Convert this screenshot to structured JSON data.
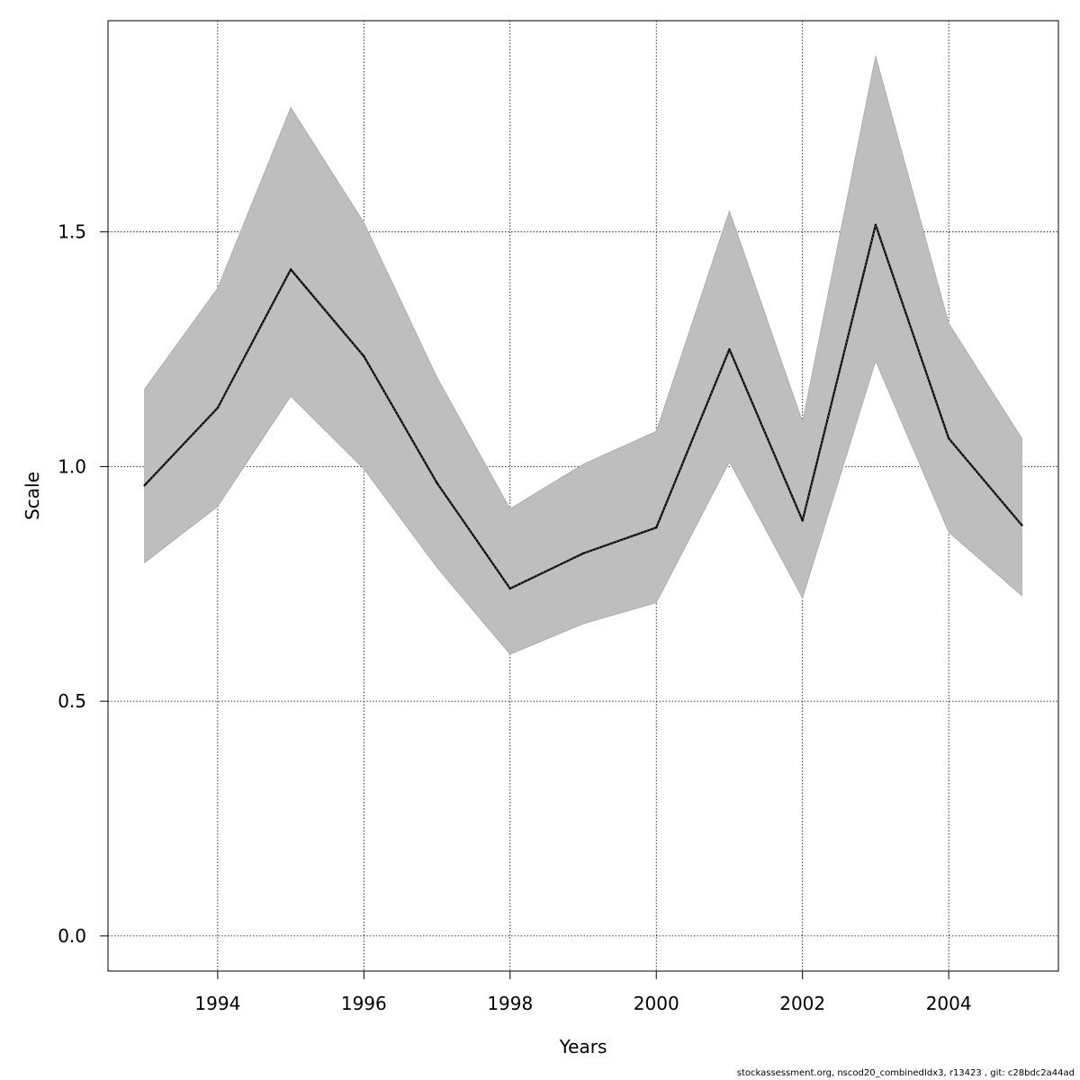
{
  "chart_data": {
    "type": "line",
    "title": "",
    "xlabel": "Years",
    "ylabel": "Scale",
    "x": [
      1993,
      1994,
      1995,
      1996,
      1997,
      1998,
      1999,
      2000,
      2001,
      2002,
      2003,
      2004,
      2005
    ],
    "xlim": [
      1992.5,
      2005.5
    ],
    "ylim": [
      -0.075,
      1.95
    ],
    "x_ticks": [
      1994,
      1996,
      1998,
      2000,
      2002,
      2004
    ],
    "x_tick_labels": [
      "1994",
      "1996",
      "1998",
      "2000",
      "2002",
      "2004"
    ],
    "y_ticks": [
      0.0,
      0.5,
      1.0,
      1.5
    ],
    "y_tick_labels": [
      "0.0",
      "0.5",
      "1.0",
      "1.5"
    ],
    "grid": true,
    "series": [
      {
        "estimate": [
          0.96,
          1.125,
          1.42,
          1.235,
          0.965,
          0.74,
          0.815,
          0.87,
          1.25,
          0.885,
          1.515,
          1.06,
          0.875
        ],
        "lower": [
          0.795,
          0.915,
          1.15,
          0.995,
          0.785,
          0.6,
          0.665,
          0.71,
          1.01,
          0.72,
          1.225,
          0.86,
          0.725
        ],
        "upper": [
          1.165,
          1.38,
          1.765,
          1.52,
          1.19,
          0.91,
          1.005,
          1.075,
          1.545,
          1.095,
          1.875,
          1.305,
          1.06
        ]
      }
    ],
    "colors": {
      "band": "#bebebe",
      "line": "#000000",
      "grid": "#000000"
    }
  },
  "footer": {
    "note": "stockassessment.org, nscod20_combinedIdx3, r13423 , git: c28bdc2a44ad"
  }
}
